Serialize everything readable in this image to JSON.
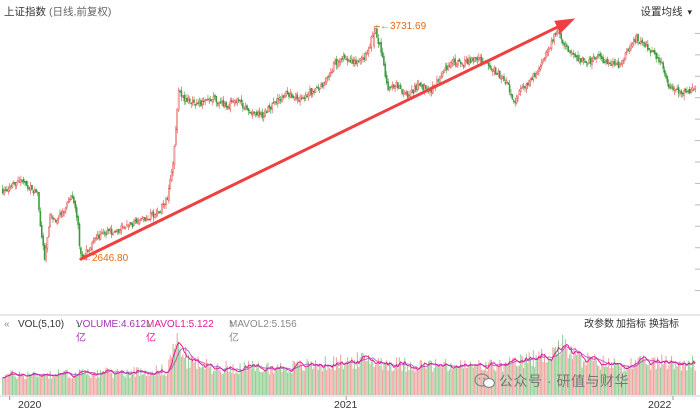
{
  "header": {
    "index_name": "上证指数",
    "subtitle": "(日线,前复权)",
    "ma_menu_label": "设置均线",
    "ma_menu_caret": "▾"
  },
  "annotations": {
    "high_label": "3731.69",
    "low_label": "2646.80"
  },
  "volume_bar": {
    "collapse_icon": "«",
    "vol_label": "VOL(5,10)",
    "volume_text": "VOLUME:4.612亿",
    "volume_arrow": "↓",
    "mavol1_text": "MAVOL1:5.122亿",
    "mavol1_arrow": "↓",
    "mavol2_text": "MAVOL2:5.156亿",
    "mavol2_arrow": "↑",
    "btn_params": "改参数",
    "btn_add": "加指标",
    "btn_switch": "换指标"
  },
  "x_axis": [
    "2020",
    "2021",
    "2022"
  ],
  "watermark": "公众号 · 研值与财华",
  "colors": {
    "up": "#e04848",
    "down": "#3a9a3a",
    "trend_arrow": "#ee4040",
    "annotation": "#e56a15",
    "volume_line": "#a62fb5",
    "mavol1": "#e8199a",
    "mavol2": "#888888"
  },
  "chart_data": {
    "type": "candlestick",
    "title": "上证指数 (日线,前复权)",
    "y_range": [
      2400,
      3800
    ],
    "series_path": [
      [
        0,
        2970
      ],
      [
        12,
        3010
      ],
      [
        18,
        2990
      ],
      [
        25,
        2950
      ],
      [
        27,
        2800
      ],
      [
        30,
        2650
      ],
      [
        34,
        2850
      ],
      [
        38,
        2830
      ],
      [
        44,
        2880
      ],
      [
        50,
        2940
      ],
      [
        54,
        2800
      ],
      [
        56,
        2646.8
      ],
      [
        62,
        2700
      ],
      [
        70,
        2760
      ],
      [
        80,
        2780
      ],
      [
        90,
        2800
      ],
      [
        100,
        2830
      ],
      [
        112,
        2870
      ],
      [
        118,
        2930
      ],
      [
        122,
        3100
      ],
      [
        124,
        3250
      ],
      [
        126,
        3420
      ],
      [
        132,
        3380
      ],
      [
        140,
        3370
      ],
      [
        150,
        3400
      ],
      [
        160,
        3360
      ],
      [
        168,
        3390
      ],
      [
        178,
        3330
      ],
      [
        186,
        3320
      ],
      [
        196,
        3380
      ],
      [
        204,
        3420
      ],
      [
        212,
        3400
      ],
      [
        222,
        3430
      ],
      [
        230,
        3470
      ],
      [
        238,
        3560
      ],
      [
        246,
        3590
      ],
      [
        254,
        3560
      ],
      [
        262,
        3610
      ],
      [
        266,
        3731.69
      ],
      [
        270,
        3640
      ],
      [
        276,
        3450
      ],
      [
        282,
        3460
      ],
      [
        290,
        3410
      ],
      [
        298,
        3460
      ],
      [
        306,
        3430
      ],
      [
        314,
        3500
      ],
      [
        322,
        3570
      ],
      [
        330,
        3560
      ],
      [
        338,
        3590
      ],
      [
        346,
        3560
      ],
      [
        354,
        3520
      ],
      [
        362,
        3460
      ],
      [
        366,
        3380
      ],
      [
        372,
        3440
      ],
      [
        380,
        3500
      ],
      [
        388,
        3580
      ],
      [
        394,
        3680
      ],
      [
        398,
        3720
      ],
      [
        402,
        3650
      ],
      [
        410,
        3590
      ],
      [
        418,
        3560
      ],
      [
        426,
        3590
      ],
      [
        434,
        3560
      ],
      [
        442,
        3550
      ],
      [
        448,
        3630
      ],
      [
        454,
        3680
      ],
      [
        460,
        3640
      ],
      [
        466,
        3610
      ],
      [
        472,
        3560
      ],
      [
        476,
        3460
      ],
      [
        482,
        3440
      ],
      [
        490,
        3420
      ],
      [
        496,
        3440
      ]
    ],
    "annotations": [
      {
        "label": "3731.69",
        "value": 3731.69,
        "type": "high"
      },
      {
        "label": "2646.80",
        "value": 2646.8,
        "type": "low"
      }
    ],
    "trend_arrow": {
      "from": [
        56,
        2646.8
      ],
      "to": [
        410,
        3770
      ]
    },
    "x_ticks": [
      {
        "label": "2020",
        "i": 5
      },
      {
        "label": "2021",
        "i": 246
      },
      {
        "label": "2022",
        "i": 480
      }
    ],
    "volume": {
      "label": "VOL(5,10)",
      "VOLUME": "4.612亿",
      "MAVOL1": "5.122亿",
      "MAVOL2": "5.156亿",
      "profile": [
        [
          0,
          3.6
        ],
        [
          40,
          3.8
        ],
        [
          80,
          4.0
        ],
        [
          118,
          4.5
        ],
        [
          122,
          8.6
        ],
        [
          126,
          9.6
        ],
        [
          132,
          6.2
        ],
        [
          150,
          5.0
        ],
        [
          200,
          4.9
        ],
        [
          240,
          5.8
        ],
        [
          262,
          6.4
        ],
        [
          280,
          5.6
        ],
        [
          320,
          5.2
        ],
        [
          360,
          5.3
        ],
        [
          390,
          7.2
        ],
        [
          400,
          9.0
        ],
        [
          412,
          6.6
        ],
        [
          440,
          5.4
        ],
        [
          470,
          5.9
        ],
        [
          496,
          5.8
        ]
      ],
      "y_max": 11
    }
  }
}
